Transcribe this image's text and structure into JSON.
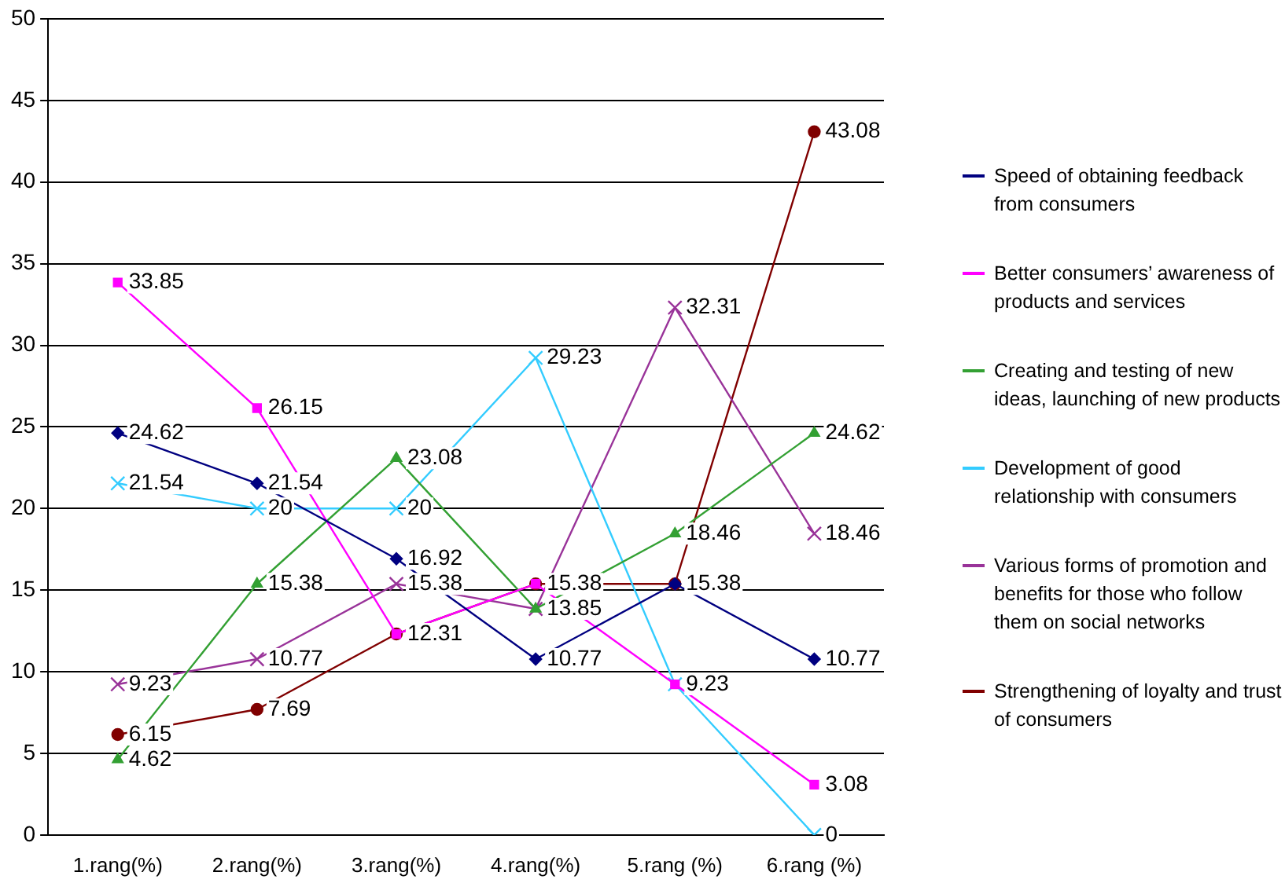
{
  "chart_data": {
    "type": "line",
    "categories": [
      "1.rang(%)",
      "2.rang(%)",
      "3.rang(%)",
      "4.rang(%)",
      "5.rang (%)",
      "6.rang (%)"
    ],
    "ylim": [
      0,
      50
    ],
    "yticks": [
      0,
      5,
      10,
      15,
      20,
      25,
      30,
      35,
      40,
      45,
      50
    ],
    "grid": "y",
    "legend": "right",
    "series": [
      {
        "name": "Speed of obtaining feedback from consumers",
        "color": "#000080",
        "marker": "diamond",
        "values": [
          24.62,
          21.54,
          16.92,
          10.77,
          15.38,
          10.77
        ],
        "value_labels": [
          "24.62",
          "21.54",
          "16.92",
          "10.77",
          null,
          "10.77"
        ]
      },
      {
        "name": "Better consumers’ awareness of products and services",
        "color": "#ff00ff",
        "marker": "square",
        "values": [
          33.85,
          26.15,
          12.31,
          15.38,
          9.23,
          3.08
        ],
        "value_labels": [
          "33.85",
          "26.15",
          null,
          null,
          "9.23",
          "3.08"
        ]
      },
      {
        "name": "Creating and testing of new ideas, launching of new products",
        "color": "#33a033",
        "marker": "triangle",
        "values": [
          4.62,
          15.38,
          23.08,
          13.85,
          18.46,
          24.62
        ],
        "value_labels": [
          "4.62",
          "15.38",
          "23.08",
          "13.85",
          "18.46",
          "24.62"
        ]
      },
      {
        "name": "Development of good relationship with consumers",
        "color": "#33ccff",
        "marker": "cross",
        "values": [
          21.54,
          20,
          20,
          29.23,
          9.23,
          0
        ],
        "value_labels": [
          "21.54",
          "20",
          "20",
          "29.23",
          null,
          "0"
        ]
      },
      {
        "name": "Various forms of promotion and benefits for those who follow them on social networks",
        "color": "#993399",
        "marker": "cross",
        "values": [
          9.23,
          10.77,
          15.38,
          13.85,
          32.31,
          18.46
        ],
        "value_labels": [
          "9.23",
          "10.77",
          "15.38",
          null,
          "32.31",
          "18.46"
        ]
      },
      {
        "name": "Strengthening of loyalty and trust of consumers",
        "color": "#800000",
        "marker": "circle",
        "values": [
          6.15,
          7.69,
          12.31,
          15.38,
          15.38,
          43.08
        ],
        "value_labels": [
          "6.15",
          "7.69",
          "12.31",
          "15.38",
          "15.38",
          "43.08"
        ]
      }
    ]
  }
}
